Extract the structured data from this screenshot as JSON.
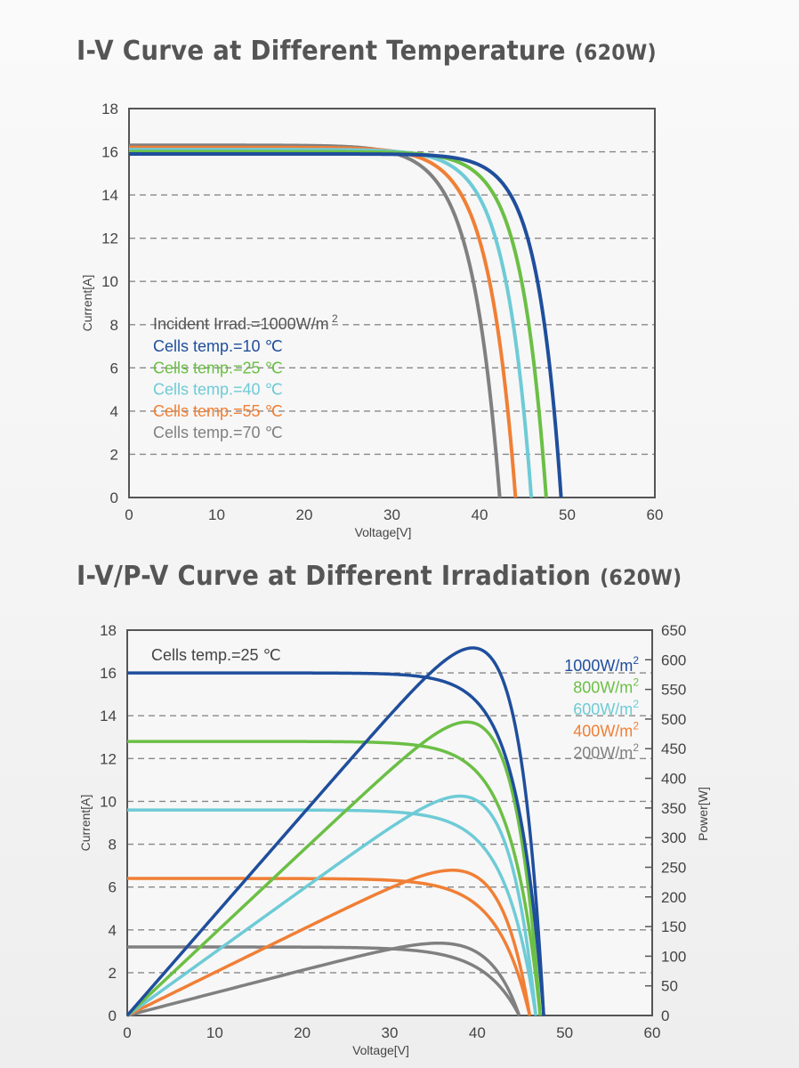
{
  "titles": {
    "chart1_main": "I-V Curve at Different Temperature",
    "chart1_suffix": "(620W)",
    "chart2_main": "I-V/P-V Curve at Different Irradiation",
    "chart2_suffix": "(620W)"
  },
  "chart_data": [
    {
      "type": "line",
      "title": "I-V Curve at Different Temperature (620W)",
      "xlabel": "Voltage[V]",
      "ylabel": "Current[A]",
      "xlim": [
        0,
        60
      ],
      "ylim": [
        0,
        18
      ],
      "xticks": [
        "0",
        "10",
        "20",
        "30",
        "40",
        "50",
        "60"
      ],
      "yticks": [
        "0",
        "2",
        "4",
        "6",
        "8",
        "10",
        "12",
        "14",
        "16",
        "18"
      ],
      "grid": "horizontal-dashed",
      "annotation": "Incident Irrad.=1000W/m",
      "annotation_sup": "2",
      "legend_position": "left-middle",
      "series": [
        {
          "name": "Cells temp.=10 ℃",
          "color": "#1f4e9c",
          "isc": 15.9,
          "voc": 49.3,
          "knee": 0.055
        },
        {
          "name": "Cells temp.=25 ℃",
          "color": "#6bbf45",
          "isc": 16.0,
          "voc": 47.6,
          "knee": 0.06
        },
        {
          "name": "Cells temp.=40 ℃",
          "color": "#6ecbd6",
          "isc": 16.1,
          "voc": 45.9,
          "knee": 0.065
        },
        {
          "name": "Cells temp.=55 ℃",
          "color": "#f07f35",
          "isc": 16.2,
          "voc": 44.1,
          "knee": 0.07
        },
        {
          "name": "Cells temp.=70 ℃",
          "color": "#808080",
          "isc": 16.3,
          "voc": 42.3,
          "knee": 0.075
        }
      ]
    },
    {
      "type": "line",
      "title": "I-V/P-V Curve at Different Irradiation (620W)",
      "xlabel": "Voltage[V]",
      "ylabel": "Current[A]",
      "y2label": "Power[W]",
      "xlim": [
        0,
        60
      ],
      "ylim": [
        0,
        18
      ],
      "y2lim": [
        0,
        650
      ],
      "xticks": [
        "0",
        "10",
        "20",
        "30",
        "40",
        "50",
        "60"
      ],
      "yticks": [
        "0",
        "2",
        "4",
        "6",
        "8",
        "10",
        "12",
        "14",
        "16",
        "18"
      ],
      "y2ticks": [
        "0",
        "50",
        "100",
        "150",
        "200",
        "250",
        "300",
        "350",
        "400",
        "450",
        "500",
        "550",
        "600",
        "650"
      ],
      "grid": "horizontal-dashed",
      "annotation": "Cells temp.=25 ℃",
      "legend_position": "top-right",
      "legend_suffix_sup": "2",
      "series": [
        {
          "name": "1000W/m",
          "color": "#1f4e9c",
          "isc": 16.0,
          "voc": 47.6,
          "knee": 0.065,
          "pmax_w": 620,
          "vmp": 40.0
        },
        {
          "name": "800W/m",
          "color": "#6bbf45",
          "isc": 12.8,
          "voc": 47.2,
          "knee": 0.07,
          "pmax_w": 495,
          "vmp": 40.0
        },
        {
          "name": "600W/m",
          "color": "#6ecbd6",
          "isc": 9.6,
          "voc": 46.7,
          "knee": 0.075,
          "pmax_w": 370,
          "vmp": 40.0
        },
        {
          "name": "400W/m",
          "color": "#f07f35",
          "isc": 6.4,
          "voc": 46.0,
          "knee": 0.08,
          "pmax_w": 245,
          "vmp": 40.0
        },
        {
          "name": "200W/m",
          "color": "#808080",
          "isc": 3.2,
          "voc": 44.8,
          "knee": 0.09,
          "pmax_w": 122,
          "vmp": 38.5
        }
      ]
    }
  ]
}
